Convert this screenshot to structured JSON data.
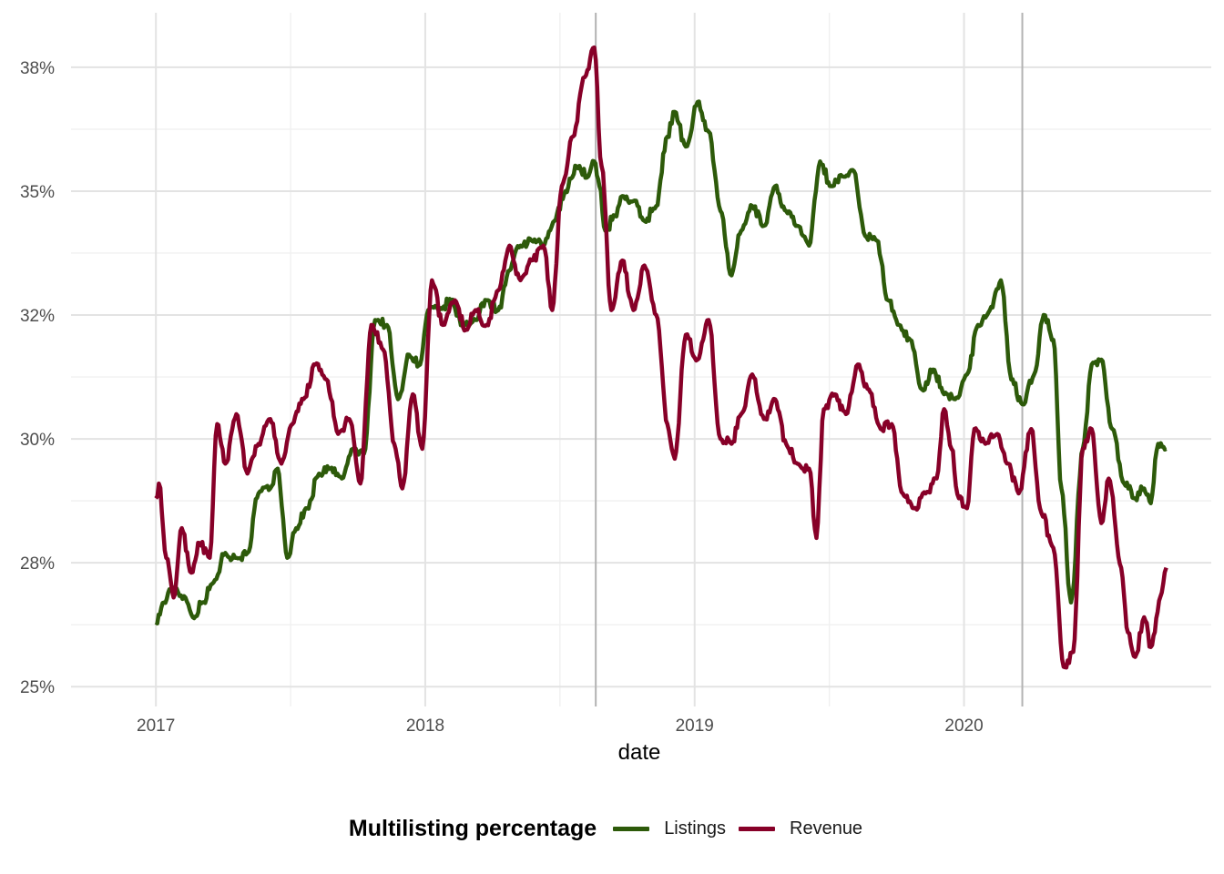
{
  "chart_data": {
    "type": "line",
    "title": "",
    "xlabel": "date",
    "ylabel": "",
    "xlim": [
      "2016-09-08",
      "2020-12-01"
    ],
    "ylim": [
      24.6,
      38.6
    ],
    "x_ticks": [
      "2017",
      "2018",
      "2019",
      "2020"
    ],
    "y_ticks": [
      "25%",
      "28%",
      "30%",
      "32%",
      "35%",
      "38%"
    ],
    "y_tick_values": [
      25,
      27.5,
      30,
      32.5,
      35,
      37.5
    ],
    "grid": true,
    "legend": {
      "title": "Multilisting percentage",
      "position": "bottom"
    },
    "vlines": [
      "2018-08-20",
      "2020-03-20"
    ],
    "vline_color": "#b3b3b3",
    "series": [
      {
        "name": "Listings",
        "color": "#2d5a0a",
        "points": [
          [
            "2017-01-01",
            26.3
          ],
          [
            "2017-01-12",
            26.7
          ],
          [
            "2017-01-25",
            27.0
          ],
          [
            "2017-02-10",
            26.8
          ],
          [
            "2017-02-20",
            26.4
          ],
          [
            "2017-03-05",
            26.7
          ],
          [
            "2017-03-20",
            27.1
          ],
          [
            "2017-04-05",
            27.7
          ],
          [
            "2017-04-20",
            27.6
          ],
          [
            "2017-05-05",
            27.7
          ],
          [
            "2017-05-20",
            28.9
          ],
          [
            "2017-06-05",
            29.0
          ],
          [
            "2017-06-15",
            29.4
          ],
          [
            "2017-06-28",
            27.6
          ],
          [
            "2017-07-10",
            28.2
          ],
          [
            "2017-07-25",
            28.6
          ],
          [
            "2017-08-10",
            29.3
          ],
          [
            "2017-08-25",
            29.4
          ],
          [
            "2017-09-10",
            29.2
          ],
          [
            "2017-09-25",
            29.8
          ],
          [
            "2017-10-10",
            29.7
          ],
          [
            "2017-10-25",
            32.4
          ],
          [
            "2017-11-10",
            32.3
          ],
          [
            "2017-11-25",
            30.8
          ],
          [
            "2017-12-10",
            31.7
          ],
          [
            "2017-12-25",
            31.5
          ],
          [
            "2018-01-05",
            32.6
          ],
          [
            "2018-01-20",
            32.6
          ],
          [
            "2018-02-05",
            32.8
          ],
          [
            "2018-02-20",
            32.3
          ],
          [
            "2018-03-10",
            32.4
          ],
          [
            "2018-03-25",
            32.8
          ],
          [
            "2018-04-10",
            32.6
          ],
          [
            "2018-04-25",
            33.4
          ],
          [
            "2018-05-10",
            33.9
          ],
          [
            "2018-05-25",
            34.0
          ],
          [
            "2018-06-10",
            33.9
          ],
          [
            "2018-06-25",
            34.4
          ],
          [
            "2018-07-10",
            35.0
          ],
          [
            "2018-07-25",
            35.5
          ],
          [
            "2018-08-10",
            35.3
          ],
          [
            "2018-08-18",
            35.6
          ],
          [
            "2018-08-25",
            35.1
          ],
          [
            "2018-09-02",
            34.2
          ],
          [
            "2018-09-15",
            34.5
          ],
          [
            "2018-09-25",
            34.9
          ],
          [
            "2018-10-10",
            34.8
          ],
          [
            "2018-10-25",
            34.4
          ],
          [
            "2018-11-10",
            34.7
          ],
          [
            "2018-11-25",
            36.1
          ],
          [
            "2018-12-05",
            36.6
          ],
          [
            "2018-12-20",
            35.9
          ],
          [
            "2019-01-05",
            36.8
          ],
          [
            "2019-01-20",
            36.2
          ],
          [
            "2019-02-05",
            34.6
          ],
          [
            "2019-02-20",
            33.3
          ],
          [
            "2019-03-05",
            34.2
          ],
          [
            "2019-03-20",
            34.7
          ],
          [
            "2019-04-05",
            34.3
          ],
          [
            "2019-04-20",
            35.1
          ],
          [
            "2019-05-05",
            34.6
          ],
          [
            "2019-05-20",
            34.3
          ],
          [
            "2019-06-05",
            33.9
          ],
          [
            "2019-06-20",
            35.6
          ],
          [
            "2019-07-05",
            35.1
          ],
          [
            "2019-07-20",
            35.3
          ],
          [
            "2019-08-05",
            35.4
          ],
          [
            "2019-08-20",
            34.1
          ],
          [
            "2019-09-05",
            34.0
          ],
          [
            "2019-09-20",
            32.8
          ],
          [
            "2019-10-05",
            32.3
          ],
          [
            "2019-10-20",
            32.0
          ],
          [
            "2019-11-05",
            31.0
          ],
          [
            "2019-11-20",
            31.4
          ],
          [
            "2019-12-05",
            30.9
          ],
          [
            "2019-12-20",
            30.8
          ],
          [
            "2020-01-05",
            31.3
          ],
          [
            "2020-01-20",
            32.3
          ],
          [
            "2020-02-05",
            32.6
          ],
          [
            "2020-02-20",
            33.2
          ],
          [
            "2020-03-05",
            31.2
          ],
          [
            "2020-03-20",
            30.7
          ],
          [
            "2020-04-05",
            31.3
          ],
          [
            "2020-04-18",
            32.5
          ],
          [
            "2020-05-01",
            32.0
          ],
          [
            "2020-05-12",
            29.0
          ],
          [
            "2020-05-25",
            26.7
          ],
          [
            "2020-06-10",
            29.8
          ],
          [
            "2020-06-22",
            31.5
          ],
          [
            "2020-07-05",
            31.6
          ],
          [
            "2020-07-20",
            30.2
          ],
          [
            "2020-08-05",
            29.1
          ],
          [
            "2020-08-20",
            28.8
          ],
          [
            "2020-09-01",
            29.0
          ],
          [
            "2020-09-10",
            28.7
          ],
          [
            "2020-09-20",
            29.9
          ],
          [
            "2020-10-01",
            29.8
          ]
        ]
      },
      {
        "name": "Revenue",
        "color": "#870028",
        "points": [
          [
            "2017-01-01",
            28.8
          ],
          [
            "2017-01-05",
            29.1
          ],
          [
            "2017-01-15",
            27.6
          ],
          [
            "2017-01-25",
            26.8
          ],
          [
            "2017-02-05",
            28.2
          ],
          [
            "2017-02-18",
            27.3
          ],
          [
            "2017-03-01",
            27.9
          ],
          [
            "2017-03-15",
            27.6
          ],
          [
            "2017-03-25",
            30.3
          ],
          [
            "2017-04-05",
            29.5
          ],
          [
            "2017-04-20",
            30.5
          ],
          [
            "2017-05-05",
            29.3
          ],
          [
            "2017-05-20",
            29.9
          ],
          [
            "2017-06-05",
            30.4
          ],
          [
            "2017-06-20",
            29.5
          ],
          [
            "2017-07-05",
            30.3
          ],
          [
            "2017-07-20",
            30.8
          ],
          [
            "2017-08-05",
            31.5
          ],
          [
            "2017-08-20",
            31.2
          ],
          [
            "2017-09-05",
            30.1
          ],
          [
            "2017-09-20",
            30.4
          ],
          [
            "2017-10-05",
            29.1
          ],
          [
            "2017-10-20",
            32.3
          ],
          [
            "2017-11-05",
            31.8
          ],
          [
            "2017-11-20",
            29.9
          ],
          [
            "2017-12-01",
            29.0
          ],
          [
            "2017-12-15",
            30.9
          ],
          [
            "2017-12-28",
            29.8
          ],
          [
            "2018-01-10",
            33.2
          ],
          [
            "2018-01-25",
            32.3
          ],
          [
            "2018-02-10",
            32.8
          ],
          [
            "2018-02-25",
            32.2
          ],
          [
            "2018-03-10",
            32.6
          ],
          [
            "2018-03-25",
            32.3
          ],
          [
            "2018-04-10",
            33.0
          ],
          [
            "2018-04-25",
            33.9
          ],
          [
            "2018-05-10",
            33.2
          ],
          [
            "2018-05-25",
            33.6
          ],
          [
            "2018-06-10",
            33.9
          ],
          [
            "2018-06-22",
            32.6
          ],
          [
            "2018-07-05",
            35.1
          ],
          [
            "2018-07-20",
            36.1
          ],
          [
            "2018-08-05",
            37.3
          ],
          [
            "2018-08-18",
            37.9
          ],
          [
            "2018-08-28",
            35.5
          ],
          [
            "2018-09-10",
            32.6
          ],
          [
            "2018-09-25",
            33.6
          ],
          [
            "2018-10-10",
            32.6
          ],
          [
            "2018-10-25",
            33.5
          ],
          [
            "2018-11-10",
            32.5
          ],
          [
            "2018-11-25",
            30.3
          ],
          [
            "2018-12-05",
            29.6
          ],
          [
            "2018-12-20",
            32.1
          ],
          [
            "2019-01-05",
            31.6
          ],
          [
            "2019-01-20",
            32.4
          ],
          [
            "2019-02-05",
            30.0
          ],
          [
            "2019-02-20",
            29.9
          ],
          [
            "2019-03-05",
            30.5
          ],
          [
            "2019-03-20",
            31.3
          ],
          [
            "2019-04-05",
            30.4
          ],
          [
            "2019-04-20",
            30.8
          ],
          [
            "2019-05-05",
            29.9
          ],
          [
            "2019-05-20",
            29.5
          ],
          [
            "2019-06-05",
            29.4
          ],
          [
            "2019-06-15",
            28.0
          ],
          [
            "2019-06-25",
            30.6
          ],
          [
            "2019-07-10",
            30.9
          ],
          [
            "2019-07-25",
            30.5
          ],
          [
            "2019-08-10",
            31.5
          ],
          [
            "2019-08-25",
            31.0
          ],
          [
            "2019-09-10",
            30.2
          ],
          [
            "2019-09-25",
            30.3
          ],
          [
            "2019-10-10",
            28.9
          ],
          [
            "2019-10-25",
            28.6
          ],
          [
            "2019-11-10",
            28.9
          ],
          [
            "2019-11-25",
            29.2
          ],
          [
            "2019-12-05",
            30.6
          ],
          [
            "2019-12-15",
            29.8
          ],
          [
            "2019-12-25",
            28.8
          ],
          [
            "2020-01-05",
            28.6
          ],
          [
            "2020-01-15",
            30.2
          ],
          [
            "2020-01-30",
            29.9
          ],
          [
            "2020-02-15",
            30.1
          ],
          [
            "2020-03-01",
            29.5
          ],
          [
            "2020-03-15",
            28.9
          ],
          [
            "2020-04-01",
            30.2
          ],
          [
            "2020-04-15",
            28.5
          ],
          [
            "2020-05-01",
            27.8
          ],
          [
            "2020-05-15",
            25.4
          ],
          [
            "2020-05-28",
            25.7
          ],
          [
            "2020-06-10",
            29.8
          ],
          [
            "2020-06-22",
            30.2
          ],
          [
            "2020-07-05",
            28.3
          ],
          [
            "2020-07-15",
            29.2
          ],
          [
            "2020-08-01",
            27.4
          ],
          [
            "2020-08-10",
            26.1
          ],
          [
            "2020-08-20",
            25.6
          ],
          [
            "2020-09-01",
            26.4
          ],
          [
            "2020-09-10",
            25.8
          ],
          [
            "2020-09-25",
            26.9
          ],
          [
            "2020-10-01",
            27.4
          ]
        ]
      }
    ]
  }
}
